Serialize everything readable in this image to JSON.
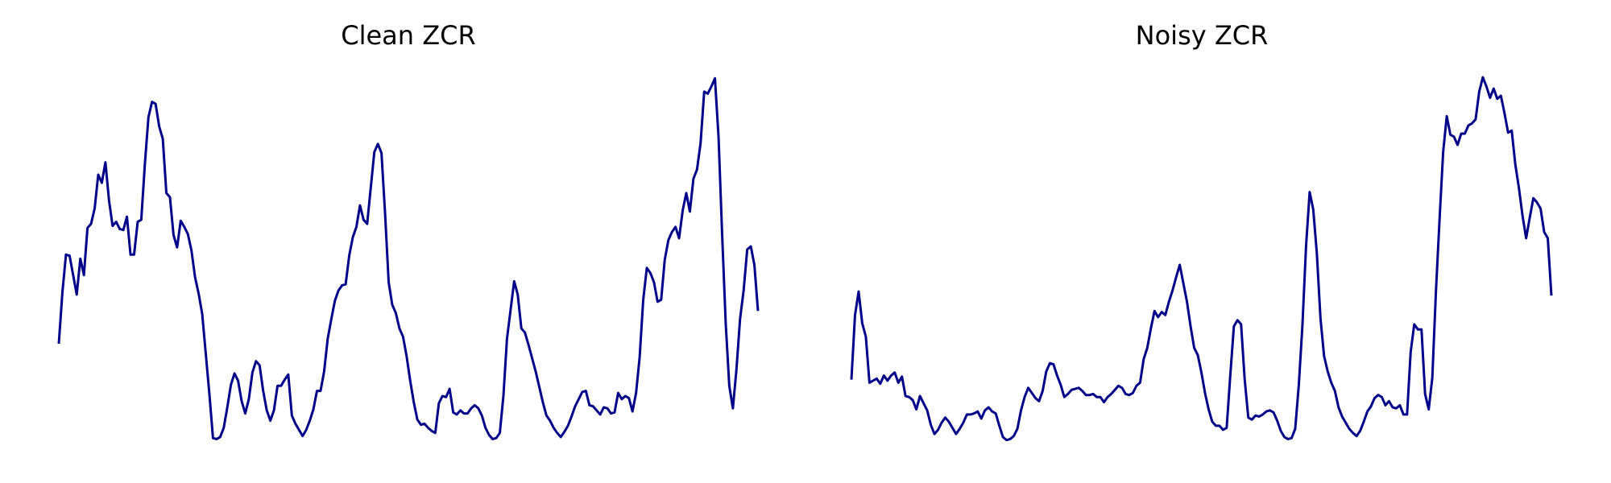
{
  "chart_data": [
    {
      "type": "line",
      "title": "Clean ZCR",
      "color": "#00008b",
      "ylim": [
        0,
        355
      ],
      "values": [
        95,
        145,
        182,
        181,
        162,
        143,
        178,
        162,
        208,
        212,
        227,
        260,
        252,
        272,
        235,
        210,
        214,
        207,
        206,
        219,
        182,
        182,
        214,
        216,
        270,
        316,
        331,
        329,
        307,
        295,
        242,
        238,
        201,
        189,
        215,
        209,
        202,
        186,
        160,
        144,
        124,
        85,
        46,
        3,
        2,
        4,
        13,
        33,
        55,
        66,
        59,
        39,
        27,
        41,
        67,
        78,
        74,
        49,
        30,
        20,
        30,
        54,
        54,
        60,
        65,
        25,
        17,
        11,
        5,
        11,
        20,
        31,
        49,
        49,
        68,
        100,
        119,
        137,
        147,
        152,
        153,
        181,
        199,
        209,
        230,
        216,
        212,
        247,
        282,
        290,
        281,
        222,
        155,
        133,
        125,
        110,
        102,
        83,
        59,
        38,
        21,
        16,
        17,
        13,
        10,
        8,
        37,
        44,
        43,
        51,
        28,
        26,
        30,
        27,
        27,
        32,
        35,
        32,
        25,
        13,
        6,
        2,
        3,
        8,
        44,
        100,
        128,
        156,
        143,
        110,
        106,
        94,
        81,
        68,
        53,
        38,
        25,
        20,
        13,
        8,
        4,
        9,
        15,
        24,
        34,
        41,
        48,
        49,
        35,
        34,
        30,
        26,
        33,
        32,
        27,
        28,
        47,
        41,
        44,
        42,
        29,
        47,
        82,
        138,
        169,
        164,
        155,
        136,
        138,
        177,
        196,
        204,
        209,
        198,
        225,
        242,
        224,
        256,
        265,
        291,
        341,
        339,
        346,
        354,
        297,
        202,
        115,
        54,
        32,
        70,
        119,
        147,
        187,
        190,
        172,
        127
      ]
    },
    {
      "type": "line",
      "title": "Noisy ZCR",
      "color": "#00008b",
      "ylim": [
        0,
        355
      ],
      "values": [
        60,
        123,
        146,
        115,
        102,
        57,
        59,
        61,
        56,
        64,
        59,
        64,
        67,
        57,
        63,
        44,
        43,
        40,
        31,
        44,
        37,
        30,
        16,
        7,
        11,
        18,
        23,
        19,
        13,
        7,
        12,
        18,
        26,
        26,
        27,
        29,
        22,
        30,
        33,
        29,
        27,
        15,
        4,
        1,
        2,
        5,
        12,
        30,
        43,
        52,
        47,
        42,
        39,
        49,
        68,
        76,
        75,
        64,
        55,
        43,
        46,
        50,
        51,
        52,
        49,
        45,
        45,
        46,
        43,
        43,
        38,
        43,
        46,
        50,
        54,
        52,
        46,
        45,
        47,
        54,
        57,
        80,
        91,
        110,
        127,
        121,
        126,
        123,
        136,
        147,
        160,
        172,
        154,
        136,
        112,
        91,
        84,
        67,
        47,
        31,
        19,
        15,
        15,
        11,
        13,
        64,
        112,
        118,
        114,
        60,
        23,
        21,
        25,
        24,
        26,
        29,
        30,
        28,
        20,
        10,
        4,
        2,
        3,
        12,
        55,
        113,
        190,
        243,
        226,
        183,
        120,
        83,
        68,
        57,
        49,
        33,
        24,
        18,
        12,
        8,
        5,
        10,
        19,
        29,
        34,
        42,
        45,
        43,
        35,
        39,
        33,
        32,
        35,
        26,
        26,
        87,
        114,
        109,
        109,
        46,
        31,
        62,
        146,
        216,
        282,
        317,
        299,
        297,
        289,
        300,
        300,
        308,
        310,
        314,
        341,
        355,
        346,
        335,
        344,
        334,
        337,
        320,
        301,
        303,
        270,
        247,
        220,
        198,
        218,
        237,
        233,
        227,
        204,
        198,
        142
      ]
    }
  ]
}
